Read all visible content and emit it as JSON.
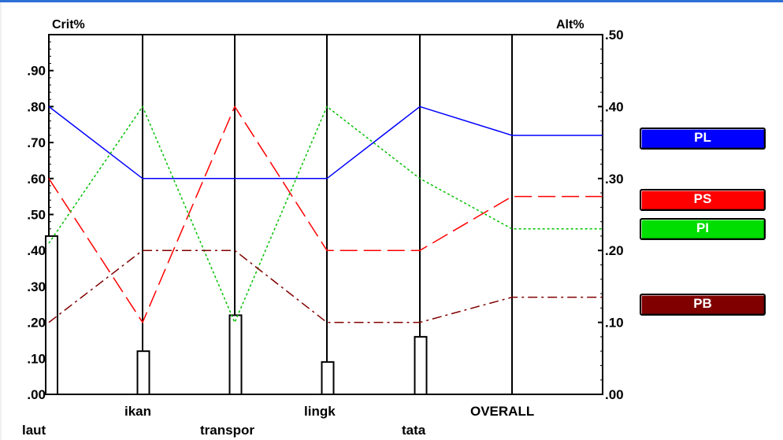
{
  "chart_data": {
    "type": "line",
    "left_axis_title": "Crit%",
    "right_axis_title": "Alt%",
    "left_ticks": [
      ".00",
      ".10",
      ".20",
      ".30",
      ".40",
      ".50",
      ".60",
      ".70",
      ".80",
      ".90"
    ],
    "right_ticks": [
      ".00",
      ".10",
      ".20",
      ".30",
      ".40",
      ".50"
    ],
    "left_ylim": [
      0,
      1.0
    ],
    "right_ylim": [
      0,
      0.5
    ],
    "categories": [
      "laut",
      "ikan",
      "transpor",
      "lingk",
      "tata",
      "OVERALL"
    ],
    "criteria_weights": [
      0.44,
      0.12,
      0.22,
      0.09,
      0.16
    ],
    "series": [
      {
        "name": "PL",
        "color": "#0000ff",
        "dash": "solid",
        "values": [
          0.4,
          0.3,
          0.3,
          0.3,
          0.4,
          0.36
        ]
      },
      {
        "name": "PS",
        "color": "#ff0000",
        "dash": "longdash",
        "values": [
          0.3,
          0.1,
          0.4,
          0.2,
          0.2,
          0.275
        ]
      },
      {
        "name": "PI",
        "color": "#00c000",
        "dash": "dotted",
        "values": [
          0.21,
          0.4,
          0.1,
          0.4,
          0.3,
          0.23
        ]
      },
      {
        "name": "PB",
        "color": "#800000",
        "dash": "dashdot",
        "values": [
          0.1,
          0.2,
          0.2,
          0.1,
          0.1,
          0.135
        ]
      }
    ],
    "legend_placement": "right"
  }
}
